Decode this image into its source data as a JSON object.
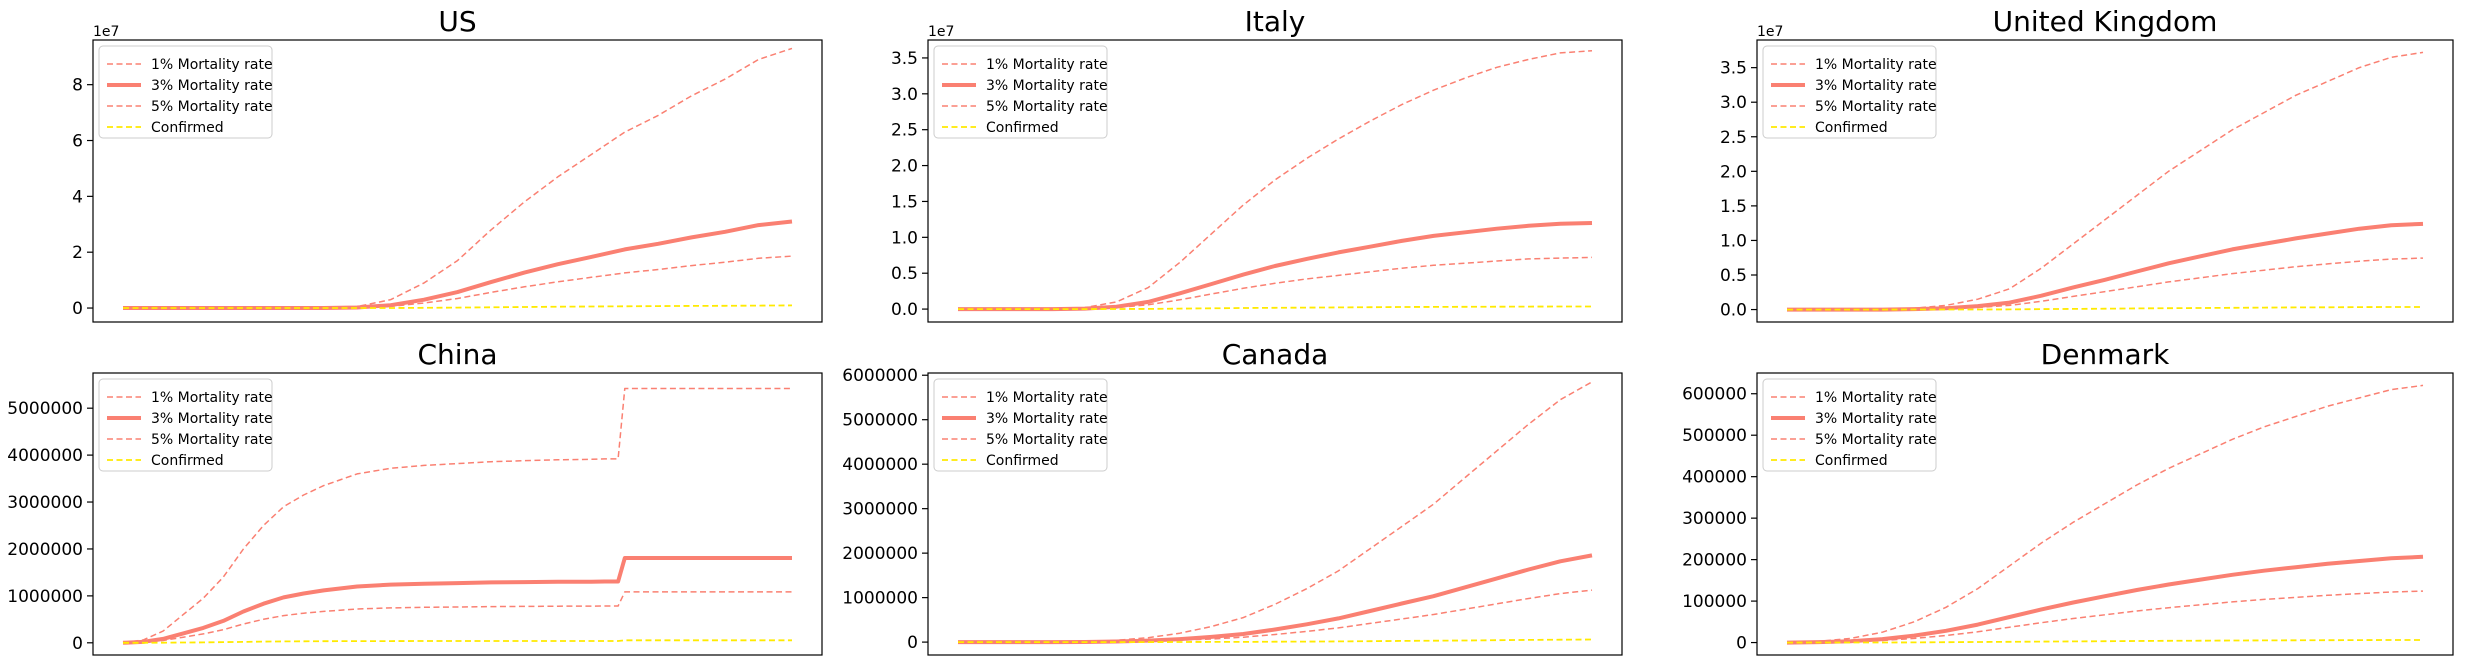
{
  "colors": {
    "mortality": "#fa8072",
    "confirmed": "#ffea00",
    "axes": "#000000",
    "legend_border": "#cccccc"
  },
  "legend": {
    "placement": "top-left",
    "entries": [
      "1% Mortality rate",
      "3% Mortality rate",
      "5% Mortality rate",
      "Confirmed"
    ]
  },
  "chart_data": [
    {
      "type": "line",
      "title": "US",
      "xlabel": "",
      "ylabel": "",
      "xticks": "hidden",
      "y_offset_label": "1e7",
      "ylim": [
        -0.5,
        9.6
      ],
      "yticks": [
        0,
        2,
        4,
        6,
        8
      ],
      "ytick_labels": [
        "0",
        "2",
        "4",
        "6",
        "8"
      ],
      "grid": false,
      "x": [
        0,
        5,
        10,
        15,
        20,
        25,
        30,
        35,
        40,
        45,
        50,
        55,
        60,
        65,
        70,
        75,
        80,
        85,
        90,
        95,
        100
      ],
      "series": [
        {
          "name": "1% Mortality rate",
          "style": "dashed",
          "values": [
            0,
            0,
            0,
            0,
            0,
            0,
            0.01,
            0.05,
            0.3,
            0.9,
            1.7,
            2.8,
            3.8,
            4.7,
            5.5,
            6.3,
            6.9,
            7.6,
            8.2,
            8.9,
            9.3
          ]
        },
        {
          "name": "3% Mortality rate",
          "style": "solid",
          "values": [
            0,
            0,
            0,
            0,
            0,
            0,
            0,
            0.02,
            0.1,
            0.3,
            0.57,
            0.93,
            1.27,
            1.57,
            1.83,
            2.1,
            2.3,
            2.53,
            2.73,
            2.97,
            3.1
          ]
        },
        {
          "name": "5% Mortality rate",
          "style": "dashed",
          "values": [
            0,
            0,
            0,
            0,
            0,
            0,
            0,
            0.01,
            0.06,
            0.18,
            0.34,
            0.56,
            0.76,
            0.94,
            1.1,
            1.26,
            1.38,
            1.52,
            1.64,
            1.78,
            1.86
          ]
        },
        {
          "name": "Confirmed",
          "style": "dashed",
          "values": [
            0,
            0,
            0,
            0,
            0,
            0,
            0,
            0,
            0.003,
            0.009,
            0.017,
            0.028,
            0.038,
            0.047,
            0.055,
            0.063,
            0.069,
            0.076,
            0.082,
            0.089,
            0.093
          ]
        }
      ]
    },
    {
      "type": "line",
      "title": "Italy",
      "xlabel": "",
      "ylabel": "",
      "xticks": "hidden",
      "y_offset_label": "1e7",
      "ylim": [
        -0.18,
        3.75
      ],
      "yticks": [
        0,
        0.5,
        1.0,
        1.5,
        2.0,
        2.5,
        3.0,
        3.5
      ],
      "ytick_labels": [
        "0.0",
        "0.5",
        "1.0",
        "1.5",
        "2.0",
        "2.5",
        "3.0",
        "3.5"
      ],
      "grid": false,
      "x": [
        0,
        5,
        10,
        15,
        20,
        25,
        30,
        35,
        40,
        45,
        50,
        55,
        60,
        65,
        70,
        75,
        80,
        85,
        90,
        95,
        100
      ],
      "series": [
        {
          "name": "1% Mortality rate",
          "style": "dashed",
          "values": [
            0,
            0,
            0,
            0,
            0.02,
            0.1,
            0.3,
            0.65,
            1.05,
            1.45,
            1.8,
            2.1,
            2.37,
            2.62,
            2.85,
            3.05,
            3.22,
            3.37,
            3.48,
            3.57,
            3.6
          ]
        },
        {
          "name": "3% Mortality rate",
          "style": "solid",
          "values": [
            0,
            0,
            0,
            0,
            0.007,
            0.033,
            0.1,
            0.22,
            0.35,
            0.48,
            0.6,
            0.7,
            0.79,
            0.87,
            0.95,
            1.02,
            1.07,
            1.12,
            1.16,
            1.19,
            1.2
          ]
        },
        {
          "name": "5% Mortality rate",
          "style": "dashed",
          "values": [
            0,
            0,
            0,
            0,
            0.004,
            0.02,
            0.06,
            0.13,
            0.21,
            0.29,
            0.36,
            0.42,
            0.47,
            0.52,
            0.57,
            0.61,
            0.64,
            0.67,
            0.7,
            0.71,
            0.72
          ]
        },
        {
          "name": "Confirmed",
          "style": "dashed",
          "values": [
            0,
            0,
            0,
            0,
            0.0002,
            0.001,
            0.003,
            0.0065,
            0.0105,
            0.0145,
            0.018,
            0.021,
            0.0237,
            0.0262,
            0.0285,
            0.0305,
            0.0322,
            0.0337,
            0.0348,
            0.0357,
            0.036
          ]
        }
      ]
    },
    {
      "type": "line",
      "title": "United Kingdom",
      "xlabel": "",
      "ylabel": "",
      "xticks": "hidden",
      "y_offset_label": "1e7",
      "ylim": [
        -0.18,
        3.9
      ],
      "yticks": [
        0,
        0.5,
        1.0,
        1.5,
        2.0,
        2.5,
        3.0,
        3.5
      ],
      "ytick_labels": [
        "0.0",
        "0.5",
        "1.0",
        "1.5",
        "2.0",
        "2.5",
        "3.0",
        "3.5"
      ],
      "grid": false,
      "x": [
        0,
        5,
        10,
        15,
        20,
        25,
        30,
        35,
        40,
        45,
        50,
        55,
        60,
        65,
        70,
        75,
        80,
        85,
        90,
        95,
        100
      ],
      "series": [
        {
          "name": "1% Mortality rate",
          "style": "dashed",
          "values": [
            0,
            0,
            0,
            0,
            0.02,
            0.06,
            0.15,
            0.3,
            0.6,
            0.95,
            1.3,
            1.65,
            2.0,
            2.3,
            2.6,
            2.85,
            3.1,
            3.3,
            3.5,
            3.65,
            3.72
          ]
        },
        {
          "name": "3% Mortality rate",
          "style": "solid",
          "values": [
            0,
            0,
            0,
            0,
            0.007,
            0.02,
            0.05,
            0.1,
            0.2,
            0.32,
            0.43,
            0.55,
            0.67,
            0.77,
            0.87,
            0.95,
            1.03,
            1.1,
            1.17,
            1.22,
            1.24
          ]
        },
        {
          "name": "5% Mortality rate",
          "style": "dashed",
          "values": [
            0,
            0,
            0,
            0,
            0.004,
            0.012,
            0.03,
            0.06,
            0.12,
            0.19,
            0.26,
            0.33,
            0.4,
            0.46,
            0.52,
            0.57,
            0.62,
            0.66,
            0.7,
            0.73,
            0.744
          ]
        },
        {
          "name": "Confirmed",
          "style": "dashed",
          "values": [
            0,
            0,
            0,
            0,
            0.0002,
            0.0006,
            0.0015,
            0.003,
            0.006,
            0.0095,
            0.013,
            0.0165,
            0.02,
            0.023,
            0.026,
            0.0285,
            0.031,
            0.033,
            0.035,
            0.0365,
            0.0372
          ]
        }
      ]
    },
    {
      "type": "line",
      "title": "China",
      "xlabel": "",
      "ylabel": "",
      "xticks": "hidden",
      "ylim": [
        -260000,
        5750000
      ],
      "yticks": [
        0,
        1000000,
        2000000,
        3000000,
        4000000,
        5000000
      ],
      "ytick_labels": [
        "0",
        "1000000",
        "2000000",
        "3000000",
        "4000000",
        "5000000"
      ],
      "grid": false,
      "x": [
        0,
        3,
        6,
        9,
        12,
        15,
        18,
        21,
        24,
        27,
        30,
        35,
        40,
        45,
        50,
        55,
        60,
        65,
        70,
        72,
        74,
        75,
        80,
        90,
        100
      ],
      "series": [
        {
          "name": "1% Mortality rate",
          "style": "dashed",
          "values": [
            0,
            60000,
            250000,
            600000,
            950000,
            1400000,
            2000000,
            2500000,
            2900000,
            3150000,
            3350000,
            3600000,
            3720000,
            3780000,
            3820000,
            3860000,
            3880000,
            3900000,
            3910000,
            3920000,
            3920000,
            5420000,
            5420000,
            5420000,
            5420000
          ]
        },
        {
          "name": "3% Mortality rate",
          "style": "solid",
          "values": [
            0,
            20000,
            83000,
            200000,
            317000,
            467000,
            667000,
            833000,
            967000,
            1050000,
            1117000,
            1200000,
            1240000,
            1260000,
            1273000,
            1287000,
            1293000,
            1300000,
            1303000,
            1307000,
            1307000,
            1807000,
            1807000,
            1807000,
            1807000
          ]
        },
        {
          "name": "5% Mortality rate",
          "style": "dashed",
          "values": [
            0,
            12000,
            50000,
            120000,
            190000,
            280000,
            400000,
            500000,
            580000,
            630000,
            670000,
            720000,
            744000,
            756000,
            764000,
            772000,
            776000,
            780000,
            782000,
            784000,
            784000,
            1084000,
            1084000,
            1084000,
            1084000
          ]
        },
        {
          "name": "Confirmed",
          "style": "dashed",
          "values": [
            0,
            600,
            2500,
            6000,
            9500,
            14000,
            20000,
            25000,
            29000,
            31500,
            33500,
            36000,
            37200,
            37800,
            38200,
            38600,
            38800,
            39000,
            39100,
            39200,
            39200,
            54200,
            54200,
            54200,
            54200
          ]
        }
      ]
    },
    {
      "type": "line",
      "title": "Canada",
      "xlabel": "",
      "ylabel": "",
      "xticks": "hidden",
      "ylim": [
        -290000,
        6050000
      ],
      "yticks": [
        0,
        1000000,
        2000000,
        3000000,
        4000000,
        5000000,
        6000000
      ],
      "ytick_labels": [
        "0",
        "1000000",
        "2000000",
        "3000000",
        "4000000",
        "5000000",
        "6000000"
      ],
      "grid": false,
      "x": [
        0,
        5,
        10,
        15,
        20,
        25,
        30,
        35,
        40,
        45,
        50,
        55,
        60,
        65,
        70,
        75,
        80,
        85,
        90,
        95,
        100
      ],
      "series": [
        {
          "name": "1% Mortality rate",
          "style": "dashed",
          "values": [
            0,
            0,
            0,
            0,
            10000,
            40000,
            100000,
            200000,
            350000,
            550000,
            850000,
            1200000,
            1600000,
            2100000,
            2600000,
            3100000,
            3700000,
            4300000,
            4900000,
            5450000,
            5850000
          ]
        },
        {
          "name": "3% Mortality rate",
          "style": "solid",
          "values": [
            0,
            0,
            0,
            0,
            3300,
            13000,
            33000,
            67000,
            117000,
            183000,
            283000,
            400000,
            533000,
            700000,
            867000,
            1033000,
            1233000,
            1433000,
            1633000,
            1817000,
            1950000
          ]
        },
        {
          "name": "5% Mortality rate",
          "style": "dashed",
          "values": [
            0,
            0,
            0,
            0,
            2000,
            8000,
            20000,
            40000,
            70000,
            110000,
            170000,
            240000,
            320000,
            420000,
            520000,
            620000,
            740000,
            860000,
            980000,
            1090000,
            1170000
          ]
        },
        {
          "name": "Confirmed",
          "style": "dashed",
          "values": [
            0,
            0,
            0,
            0,
            100,
            400,
            1000,
            2000,
            3500,
            5500,
            8500,
            12000,
            16000,
            21000,
            26000,
            31000,
            37000,
            43000,
            49000,
            54500,
            58500
          ]
        }
      ]
    },
    {
      "type": "line",
      "title": "Denmark",
      "xlabel": "",
      "ylabel": "",
      "xticks": "hidden",
      "ylim": [
        -30000,
        650000
      ],
      "yticks": [
        0,
        100000,
        200000,
        300000,
        400000,
        500000,
        600000
      ],
      "ytick_labels": [
        "0",
        "100000",
        "200000",
        "300000",
        "400000",
        "500000",
        "600000"
      ],
      "grid": false,
      "x": [
        0,
        5,
        10,
        15,
        20,
        25,
        30,
        35,
        40,
        45,
        50,
        55,
        60,
        65,
        70,
        75,
        80,
        85,
        90,
        95,
        100
      ],
      "series": [
        {
          "name": "1% Mortality rate",
          "style": "dashed",
          "values": [
            0,
            3000,
            10000,
            25000,
            50000,
            85000,
            130000,
            185000,
            240000,
            290000,
            335000,
            380000,
            420000,
            455000,
            490000,
            520000,
            545000,
            570000,
            590000,
            610000,
            620000
          ]
        },
        {
          "name": "3% Mortality rate",
          "style": "solid",
          "values": [
            0,
            1000,
            3300,
            8300,
            16700,
            28300,
            43300,
            61700,
            80000,
            96700,
            111700,
            126700,
            140000,
            151700,
            163300,
            173300,
            181700,
            190000,
            196700,
            203300,
            206700
          ]
        },
        {
          "name": "5% Mortality rate",
          "style": "dashed",
          "values": [
            0,
            600,
            2000,
            5000,
            10000,
            17000,
            26000,
            37000,
            48000,
            58000,
            67000,
            76000,
            84000,
            91000,
            98000,
            104000,
            109000,
            114000,
            118000,
            122000,
            124000
          ]
        },
        {
          "name": "Confirmed",
          "style": "dashed",
          "values": [
            0,
            30,
            100,
            250,
            500,
            850,
            1300,
            1850,
            2400,
            2900,
            3350,
            3800,
            4200,
            4550,
            4900,
            5200,
            5450,
            5700,
            5900,
            6100,
            6200
          ]
        }
      ]
    }
  ]
}
